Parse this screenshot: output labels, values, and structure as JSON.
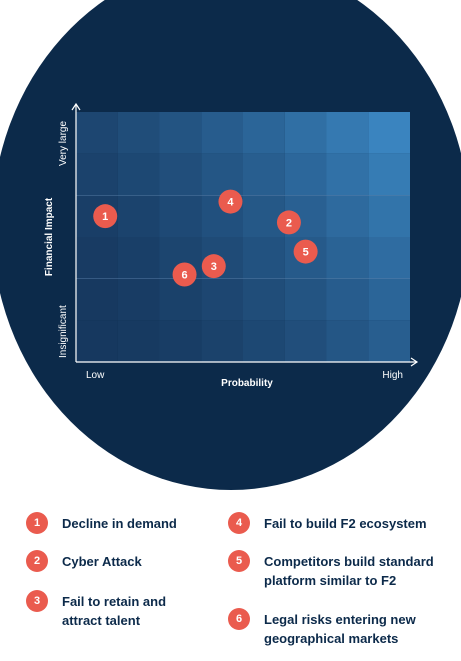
{
  "colors": {
    "background": "#0c2a4a",
    "marker": "#ea5b4e",
    "cell_low": "#16385f",
    "cell_high": "#3a84bf",
    "text_dark": "#0c2a4a"
  },
  "chart_data": {
    "type": "scatter",
    "xlabel": "Probability",
    "ylabel": "Financial Impact",
    "x_tick_labels": [
      "Low",
      "High"
    ],
    "y_tick_labels": [
      "Insignificant",
      "Very large"
    ],
    "xlim": [
      0,
      8
    ],
    "ylim": [
      0,
      6
    ],
    "grid_columns": 8,
    "grid_rows": 6,
    "grid": true,
    "legend": "bottom",
    "points": [
      {
        "label": "1",
        "x": 0.7,
        "y": 3.5
      },
      {
        "label": "2",
        "x": 5.1,
        "y": 3.35
      },
      {
        "label": "3",
        "x": 3.3,
        "y": 2.3
      },
      {
        "label": "4",
        "x": 3.7,
        "y": 3.85
      },
      {
        "label": "5",
        "x": 5.5,
        "y": 2.65
      },
      {
        "label": "6",
        "x": 2.6,
        "y": 2.1
      }
    ]
  },
  "legend": [
    {
      "number": "1",
      "text": "Decline in demand"
    },
    {
      "number": "2",
      "text": "Cyber Attack"
    },
    {
      "number": "3",
      "text": "Fail to retain and attract talent"
    },
    {
      "number": "4",
      "text": "Fail to build F2 ecosystem"
    },
    {
      "number": "5",
      "text": "Competitors build standard platform similar to F2"
    },
    {
      "number": "6",
      "text": "Legal risks entering new geographical markets"
    }
  ]
}
